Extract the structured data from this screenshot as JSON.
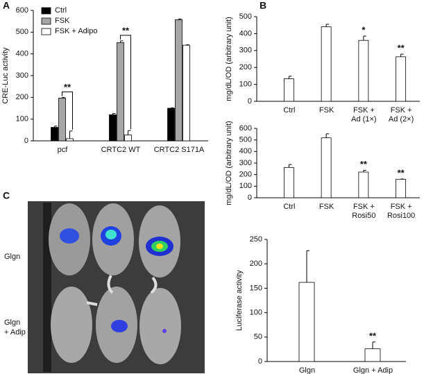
{
  "panel_labels": [
    "A",
    "B",
    "C"
  ],
  "image_labels": [
    [
      "Glgn"
    ],
    [
      "Glgn",
      "+ Adip"
    ]
  ],
  "chart_data": [
    {
      "type": "bar",
      "ylabel": "CRE-Luc activity",
      "categories": [
        "pcf",
        "CRTC2 WT",
        "CRTC2 S171A"
      ],
      "series": [
        {
          "name": "Ctrl",
          "color": "#000000",
          "values": [
            62,
            120,
            150
          ],
          "errors": [
            6,
            6,
            2
          ]
        },
        {
          "name": "FSK",
          "color": "#a6a6a6",
          "values": [
            197,
            452,
            557
          ],
          "errors": [
            3,
            8,
            4
          ]
        },
        {
          "name": "FSK + Adipo",
          "color": "#ffffff",
          "values": [
            10,
            27,
            440
          ],
          "errors": [
            35,
            20,
            2
          ]
        }
      ],
      "significance": [
        "**",
        "**",
        null
      ],
      "ylim": [
        0,
        600
      ],
      "yticks": [
        0,
        100,
        200,
        300,
        400,
        500,
        600
      ],
      "legend": "top-left"
    },
    {
      "type": "bar",
      "ylabel": "mg/dL/OD (arbitrary unit)",
      "categories": [
        [
          "Ctrl"
        ],
        [
          "FSK"
        ],
        [
          "FSK +",
          "Ad (1×)"
        ],
        [
          "FSK +",
          "Ad (2×)"
        ]
      ],
      "values": [
        133,
        440,
        360,
        263
      ],
      "errors": [
        15,
        15,
        25,
        15
      ],
      "color": "#ffffff",
      "significance": [
        null,
        null,
        "*",
        "**"
      ],
      "ylim": [
        0,
        500
      ],
      "yticks": [
        0,
        100,
        200,
        300,
        400,
        500
      ]
    },
    {
      "type": "bar",
      "ylabel": "mg/dL/OD (arbitrary unit)",
      "categories": [
        [
          "Ctrl"
        ],
        [
          "FSK"
        ],
        [
          "FSK +",
          "Rosi50"
        ],
        [
          "FSK +",
          "Rosi100"
        ]
      ],
      "values": [
        262,
        518,
        222,
        160
      ],
      "errors": [
        25,
        35,
        15,
        3
      ],
      "color": "#ffffff",
      "significance": [
        null,
        null,
        "**",
        "**"
      ],
      "ylim": [
        0,
        600
      ],
      "yticks": [
        0,
        100,
        200,
        300,
        400,
        500,
        600
      ]
    },
    {
      "type": "bar",
      "ylabel": "Luciferase activity",
      "categories": [
        "Glgn",
        "Glgn + Adip"
      ],
      "values": [
        162,
        26
      ],
      "errors": [
        65,
        14
      ],
      "color": "#ffffff",
      "significance": [
        null,
        "**"
      ],
      "ylim": [
        0,
        250
      ],
      "yticks": [
        0,
        50,
        100,
        150,
        200,
        250
      ]
    }
  ]
}
